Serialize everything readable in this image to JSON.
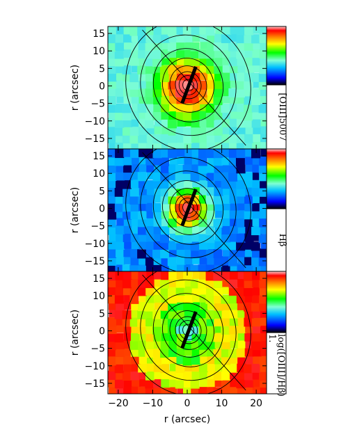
{
  "chart_data": [
    {
      "type": "heatmap",
      "panel": "top",
      "xlabel": "",
      "ylabel": "r (arcsec)",
      "xlim": [
        -23,
        23
      ],
      "ylim": [
        -18,
        17
      ],
      "yticks": [
        "15",
        "10",
        "5",
        "0",
        "−5",
        "−10",
        "−15"
      ],
      "colorbar_label": "[OIII]5007",
      "colormap": [
        "#000000",
        "#0000ff",
        "#00c0ff",
        "#7fffd4",
        "#00ff00",
        "#ffff00",
        "#ff8000",
        "#ff0000",
        "#ffd0d0"
      ],
      "background_level": 0.35,
      "peak_level": 0.95,
      "slit": {
        "x1": -1.5,
        "y1": -5,
        "x2": 2.5,
        "y2": 5.5
      },
      "contour_levels_arcsec": [
        1.5,
        2.5,
        3.5,
        5,
        7,
        9.5,
        13,
        17
      ]
    },
    {
      "type": "heatmap",
      "panel": "middle",
      "xlabel": "",
      "ylabel": "r (arcsec)",
      "xlim": [
        -23,
        23
      ],
      "ylim": [
        -18,
        17
      ],
      "yticks": [
        "15",
        "10",
        "5",
        "0",
        "−5",
        "−10",
        "−15"
      ],
      "colorbar_label": "Hβ",
      "colormap": [
        "#000000",
        "#0000ff",
        "#00c0ff",
        "#7fffd4",
        "#00ff00",
        "#ffff00",
        "#ff8000",
        "#ff0000",
        "#ffd0d0"
      ],
      "background_level": 0.22,
      "peak_level": 0.95,
      "slit": {
        "x1": -1.5,
        "y1": -5,
        "x2": 2.5,
        "y2": 5.5
      },
      "contour_levels_arcsec": [
        1.5,
        2.5,
        3.5,
        5,
        7,
        9.5,
        13,
        17
      ]
    },
    {
      "type": "heatmap",
      "panel": "bottom",
      "xlabel": "r (arcsec)",
      "ylabel": "r (arcsec)",
      "xlim": [
        -23,
        23
      ],
      "ylim": [
        -18,
        17
      ],
      "xticks": [
        "−20",
        "−10",
        "0",
        "10",
        "20"
      ],
      "yticks": [
        "15",
        "10",
        "5",
        "0",
        "−5",
        "−10",
        "−15"
      ],
      "colorbar_label": "log([OIII]/Hβ)",
      "colorbar_tick": "1.",
      "colormap": [
        "#000000",
        "#0000ff",
        "#00c0ff",
        "#7fffd4",
        "#00ff00",
        "#ffff00",
        "#ff8000",
        "#ff0000",
        "#ffd0d0"
      ],
      "background_level": 0.62,
      "peak_level": 0.55,
      "slit": {
        "x1": -1.5,
        "y1": -5,
        "x2": 2.5,
        "y2": 5.5
      },
      "contour_levels_arcsec": [
        1.5,
        2.5,
        3.5,
        5,
        7,
        9.5,
        13,
        17
      ]
    }
  ]
}
